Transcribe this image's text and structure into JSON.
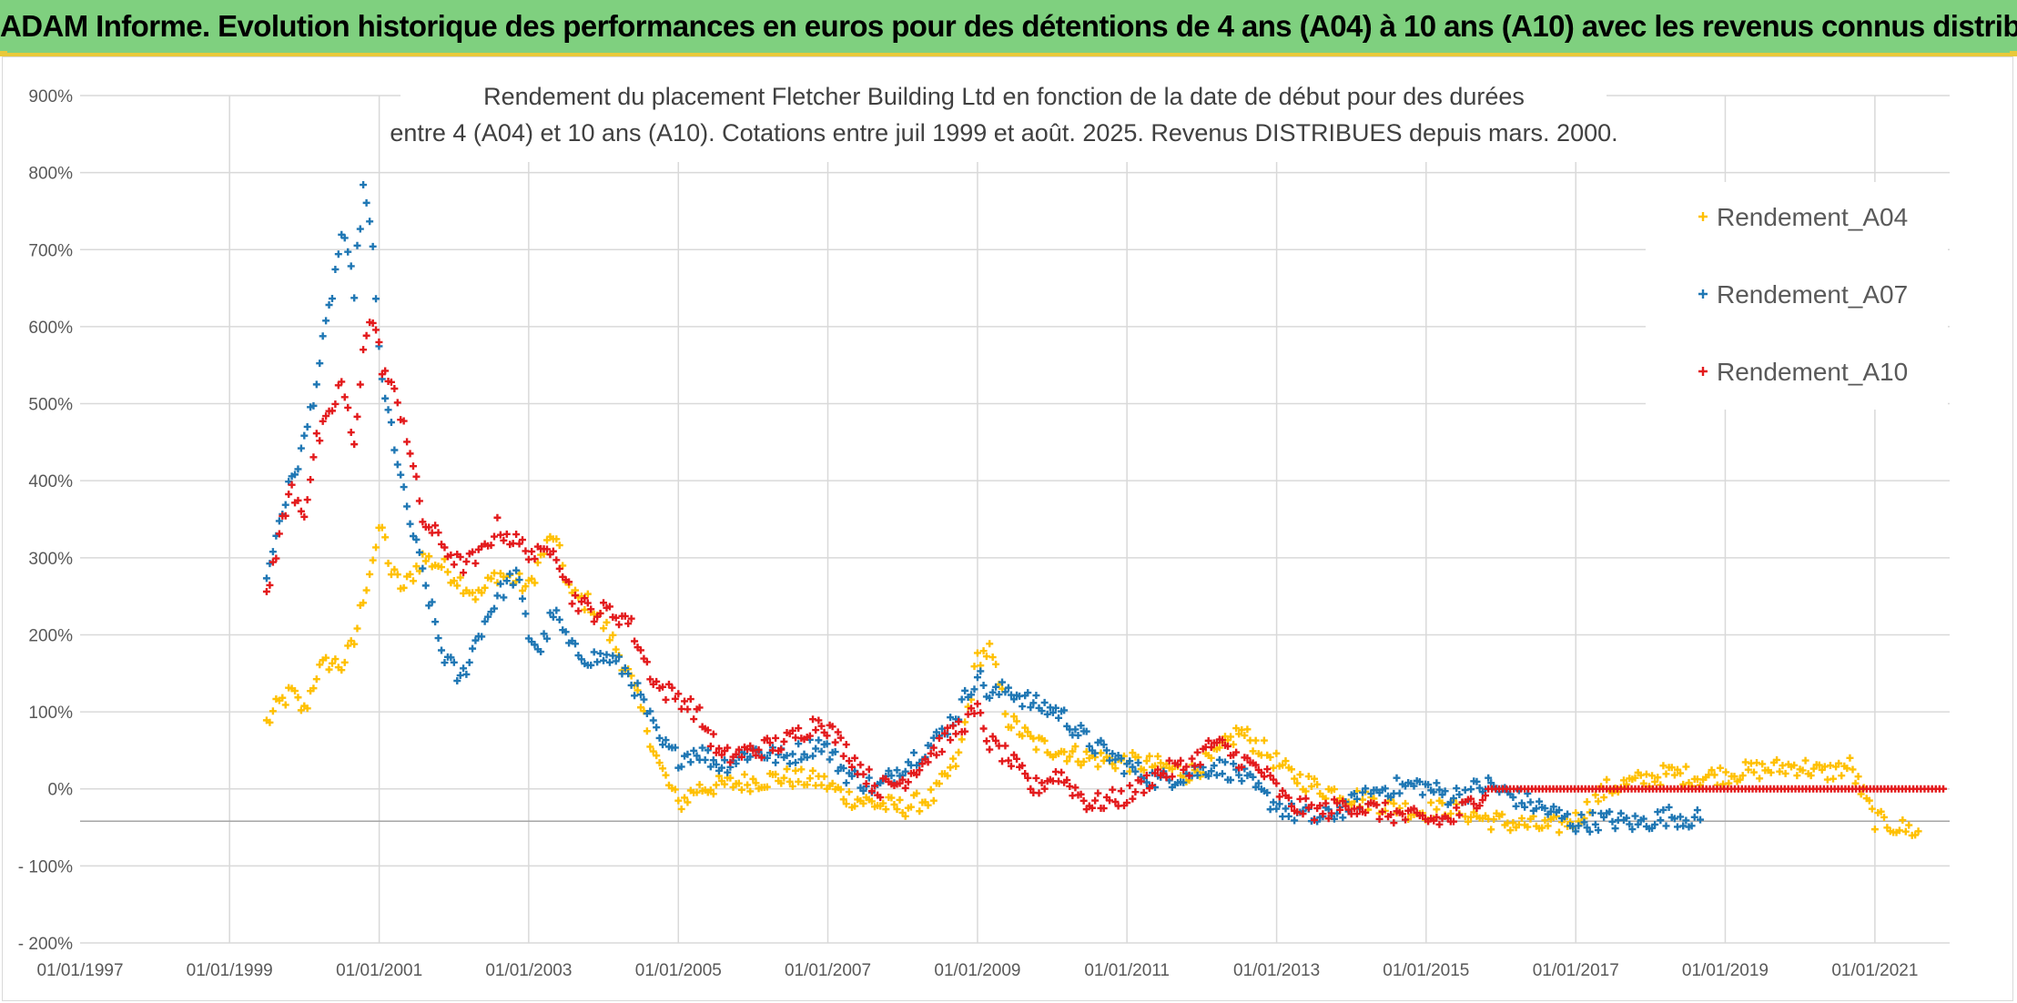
{
  "header": {
    "title": "ADAM Informe. Evolution historique des performances en euros pour des détentions de 4 ans (A04) à 10 ans (A10) avec les revenus connus distribués",
    "background_color": "#7fd07f",
    "accent_color": "#e9c93a"
  },
  "chart_data": {
    "type": "scatter",
    "title_lines": [
      "Rendement du placement Fletcher Building Ltd en fonction de la date de début pour des durées",
      "entre 4 (A04) et 10 ans (A10). Cotations entre juil 1999 et août. 2025. Revenus DISTRIBUES depuis mars. 2000."
    ],
    "xlabel": "",
    "ylabel": "",
    "x_ticks": [
      "01/01/1997",
      "01/01/1999",
      "01/01/2001",
      "01/01/2003",
      "01/01/2005",
      "01/01/2007",
      "01/01/2009",
      "01/01/2011",
      "01/01/2013",
      "01/01/2015",
      "01/01/2017",
      "01/01/2019",
      "01/01/2021"
    ],
    "y_ticks": [
      "900%",
      "800%",
      "700%",
      "600%",
      "500%",
      "400%",
      "300%",
      "200%",
      "100%",
      "0%",
      "- 100%",
      "- 200%"
    ],
    "xlim": [
      "1997-01-01",
      "2022-01-01"
    ],
    "ylim": [
      -200,
      900
    ],
    "y_unit": "%",
    "grid": true,
    "legend_position": "top-right",
    "marker": "+",
    "series": [
      {
        "name": "Rendement_A04",
        "color": "#ffc000",
        "points": [
          [
            "1999-07-01",
            85
          ],
          [
            "1999-09-01",
            110
          ],
          [
            "1999-11-01",
            125
          ],
          [
            "2000-01-01",
            100
          ],
          [
            "2000-03-01",
            150
          ],
          [
            "2000-05-01",
            165
          ],
          [
            "2000-07-01",
            160
          ],
          [
            "2000-09-01",
            190
          ],
          [
            "2000-10-15",
            250
          ],
          [
            "2000-12-01",
            300
          ],
          [
            "2001-01-15",
            340
          ],
          [
            "2001-03-01",
            280
          ],
          [
            "2001-05-01",
            260
          ],
          [
            "2001-08-01",
            300
          ],
          [
            "2001-11-01",
            290
          ],
          [
            "2002-02-01",
            270
          ],
          [
            "2002-05-01",
            250
          ],
          [
            "2002-08-01",
            280
          ],
          [
            "2002-11-01",
            270
          ],
          [
            "2003-01-01",
            260
          ],
          [
            "2003-03-01",
            300
          ],
          [
            "2003-05-01",
            330
          ],
          [
            "2003-08-01",
            250
          ],
          [
            "2003-11-01",
            240
          ],
          [
            "2004-02-01",
            200
          ],
          [
            "2004-05-01",
            150
          ],
          [
            "2004-08-01",
            80
          ],
          [
            "2004-10-01",
            30
          ],
          [
            "2005-01-01",
            -20
          ],
          [
            "2005-04-01",
            0
          ],
          [
            "2005-08-01",
            5
          ],
          [
            "2006-01-01",
            10
          ],
          [
            "2006-06-01",
            15
          ],
          [
            "2006-12-01",
            10
          ],
          [
            "2007-04-01",
            -10
          ],
          [
            "2007-09-01",
            -20
          ],
          [
            "2008-01-01",
            -25
          ],
          [
            "2008-06-01",
            -10
          ],
          [
            "2008-10-01",
            40
          ],
          [
            "2009-01-01",
            170
          ],
          [
            "2009-03-01",
            180
          ],
          [
            "2009-06-01",
            90
          ],
          [
            "2009-10-01",
            60
          ],
          [
            "2010-02-01",
            50
          ],
          [
            "2010-07-01",
            40
          ],
          [
            "2011-01-01",
            35
          ],
          [
            "2011-06-01",
            30
          ],
          [
            "2011-11-01",
            20
          ],
          [
            "2012-03-01",
            40
          ],
          [
            "2012-07-01",
            75
          ],
          [
            "2012-11-01",
            50
          ],
          [
            "2013-03-01",
            20
          ],
          [
            "2013-08-01",
            0
          ],
          [
            "2014-01-01",
            -10
          ],
          [
            "2014-06-01",
            -20
          ],
          [
            "2014-12-01",
            -30
          ],
          [
            "2015-05-01",
            -25
          ],
          [
            "2015-11-01",
            -40
          ],
          [
            "2016-03-01",
            -45
          ],
          [
            "2016-09-01",
            -50
          ],
          [
            "2017-01-01",
            -40
          ],
          [
            "2017-06-01",
            0
          ],
          [
            "2017-11-01",
            10
          ],
          [
            "2018-04-01",
            20
          ],
          [
            "2018-09-01",
            15
          ],
          [
            "2019-02-01",
            20
          ],
          [
            "2019-07-01",
            25
          ],
          [
            "2020-01-01",
            30
          ],
          [
            "2020-05-01",
            20
          ],
          [
            "2020-09-01",
            30
          ],
          [
            "2021-01-01",
            -40
          ],
          [
            "2021-05-01",
            -50
          ],
          [
            "2021-08-01",
            -55
          ]
        ]
      },
      {
        "name": "Rendement_A07",
        "color": "#1f77b4",
        "points": [
          [
            "1999-07-01",
            270
          ],
          [
            "1999-09-01",
            350
          ],
          [
            "1999-11-01",
            400
          ],
          [
            "2000-01-01",
            450
          ],
          [
            "2000-03-01",
            530
          ],
          [
            "2000-05-01",
            620
          ],
          [
            "2000-07-01",
            720
          ],
          [
            "2000-09-01",
            650
          ],
          [
            "2000-10-15",
            780
          ],
          [
            "2000-12-01",
            700
          ],
          [
            "2001-01-15",
            520
          ],
          [
            "2001-03-01",
            470
          ],
          [
            "2001-05-01",
            380
          ],
          [
            "2001-08-01",
            280
          ],
          [
            "2001-11-01",
            180
          ],
          [
            "2002-02-01",
            140
          ],
          [
            "2002-05-01",
            200
          ],
          [
            "2002-08-01",
            250
          ],
          [
            "2002-11-01",
            280
          ],
          [
            "2003-01-01",
            200
          ],
          [
            "2003-03-01",
            180
          ],
          [
            "2003-05-01",
            230
          ],
          [
            "2003-08-01",
            180
          ],
          [
            "2003-11-01",
            170
          ],
          [
            "2004-02-01",
            170
          ],
          [
            "2004-05-01",
            150
          ],
          [
            "2004-08-01",
            100
          ],
          [
            "2004-10-01",
            60
          ],
          [
            "2005-01-01",
            40
          ],
          [
            "2005-04-01",
            50
          ],
          [
            "2005-08-01",
            30
          ],
          [
            "2006-01-01",
            50
          ],
          [
            "2006-06-01",
            40
          ],
          [
            "2006-12-01",
            60
          ],
          [
            "2007-04-01",
            20
          ],
          [
            "2007-09-01",
            0
          ],
          [
            "2008-01-01",
            30
          ],
          [
            "2008-06-01",
            60
          ],
          [
            "2008-10-01",
            100
          ],
          [
            "2009-01-01",
            150
          ],
          [
            "2009-03-01",
            120
          ],
          [
            "2009-06-01",
            130
          ],
          [
            "2009-10-01",
            110
          ],
          [
            "2010-02-01",
            100
          ],
          [
            "2010-07-01",
            60
          ],
          [
            "2011-01-01",
            30
          ],
          [
            "2011-06-01",
            10
          ],
          [
            "2011-11-01",
            20
          ],
          [
            "2012-03-01",
            30
          ],
          [
            "2012-07-01",
            20
          ],
          [
            "2012-11-01",
            -10
          ],
          [
            "2013-03-01",
            -30
          ],
          [
            "2013-08-01",
            -40
          ],
          [
            "2014-01-01",
            -20
          ],
          [
            "2014-06-01",
            0
          ],
          [
            "2014-12-01",
            5
          ],
          [
            "2015-05-01",
            -10
          ],
          [
            "2015-11-01",
            5
          ],
          [
            "2016-03-01",
            -10
          ],
          [
            "2016-09-01",
            -30
          ],
          [
            "2017-01-01",
            -45
          ],
          [
            "2017-06-01",
            -40
          ],
          [
            "2017-11-01",
            -45
          ],
          [
            "2018-04-01",
            -35
          ],
          [
            "2018-09-01",
            -40
          ]
        ]
      },
      {
        "name": "Rendement_A10",
        "color": "#e31a1c",
        "points": [
          [
            "1999-07-01",
            250
          ],
          [
            "1999-09-01",
            330
          ],
          [
            "1999-11-01",
            390
          ],
          [
            "2000-01-01",
            360
          ],
          [
            "2000-03-01",
            450
          ],
          [
            "2000-05-01",
            480
          ],
          [
            "2000-07-01",
            530
          ],
          [
            "2000-09-01",
            440
          ],
          [
            "2000-10-15",
            580
          ],
          [
            "2000-12-01",
            610
          ],
          [
            "2001-01-15",
            550
          ],
          [
            "2001-03-01",
            520
          ],
          [
            "2001-05-01",
            480
          ],
          [
            "2001-08-01",
            350
          ],
          [
            "2001-11-01",
            320
          ],
          [
            "2002-02-01",
            290
          ],
          [
            "2002-05-01",
            300
          ],
          [
            "2002-08-01",
            340
          ],
          [
            "2002-11-01",
            320
          ],
          [
            "2003-01-01",
            310
          ],
          [
            "2003-03-01",
            300
          ],
          [
            "2003-05-01",
            320
          ],
          [
            "2003-08-01",
            250
          ],
          [
            "2003-11-01",
            230
          ],
          [
            "2004-02-01",
            230
          ],
          [
            "2004-05-01",
            220
          ],
          [
            "2004-08-01",
            160
          ],
          [
            "2004-10-01",
            130
          ],
          [
            "2005-01-01",
            120
          ],
          [
            "2005-04-01",
            100
          ],
          [
            "2005-08-01",
            40
          ],
          [
            "2006-01-01",
            50
          ],
          [
            "2006-06-01",
            60
          ],
          [
            "2006-12-01",
            90
          ],
          [
            "2007-04-01",
            50
          ],
          [
            "2007-09-01",
            0
          ],
          [
            "2008-01-01",
            10
          ],
          [
            "2008-06-01",
            50
          ],
          [
            "2008-10-01",
            80
          ],
          [
            "2009-01-01",
            100
          ],
          [
            "2009-03-01",
            60
          ],
          [
            "2009-06-01",
            40
          ],
          [
            "2009-10-01",
            0
          ],
          [
            "2010-02-01",
            20
          ],
          [
            "2010-07-01",
            -20
          ],
          [
            "2011-01-01",
            -10
          ],
          [
            "2011-06-01",
            20
          ],
          [
            "2011-11-01",
            30
          ],
          [
            "2012-03-01",
            60
          ],
          [
            "2012-07-01",
            40
          ],
          [
            "2012-11-01",
            20
          ],
          [
            "2013-03-01",
            -20
          ],
          [
            "2013-08-01",
            -30
          ],
          [
            "2014-01-01",
            -20
          ],
          [
            "2014-06-01",
            -30
          ],
          [
            "2014-12-01",
            -40
          ],
          [
            "2015-05-01",
            -40
          ],
          [
            "2015-11-01",
            0
          ],
          [
            "2016-06-01",
            0
          ],
          [
            "2017-06-01",
            0
          ],
          [
            "2018-06-01",
            0
          ],
          [
            "2019-06-01",
            0
          ],
          [
            "2020-06-01",
            0
          ],
          [
            "2021-06-01",
            0
          ],
          [
            "2021-12-01",
            0
          ]
        ]
      }
    ]
  }
}
